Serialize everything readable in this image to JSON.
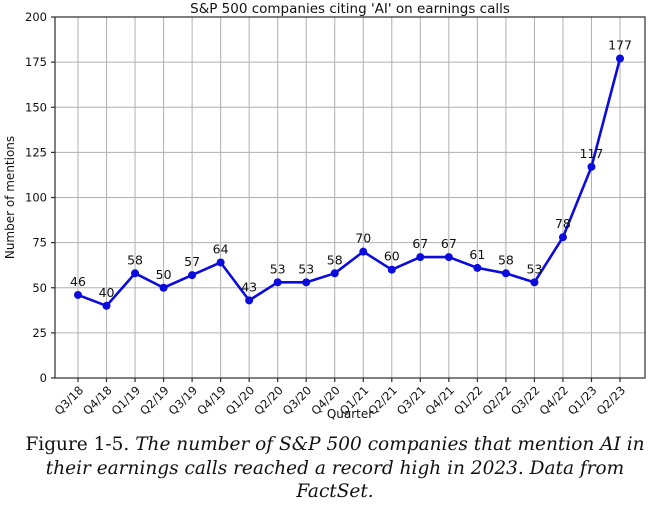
{
  "figure": {
    "caption_label": "Figure 1-5.",
    "caption_text": "The number of S&P 500 companies that mention AI in their earnings calls reached a record high in 2023. Data from FactSet."
  },
  "chart_data": {
    "type": "line",
    "title": "S&P 500 companies citing 'AI' on earnings calls",
    "xlabel": "Quarter",
    "ylabel": "Number of mentions",
    "categories": [
      "Q3/18",
      "Q4/18",
      "Q1/19",
      "Q2/19",
      "Q3/19",
      "Q4/19",
      "Q1/20",
      "Q2/20",
      "Q3/20",
      "Q4/20",
      "Q1/21",
      "Q2/21",
      "Q3/21",
      "Q4/21",
      "Q1/22",
      "Q2/22",
      "Q3/22",
      "Q4/22",
      "Q1/23",
      "Q2/23"
    ],
    "values": [
      46,
      40,
      58,
      50,
      57,
      64,
      43,
      53,
      53,
      58,
      70,
      60,
      67,
      67,
      61,
      58,
      53,
      78,
      117,
      177
    ],
    "ylim": [
      0,
      200
    ],
    "yticks": [
      0,
      25,
      50,
      75,
      100,
      125,
      150,
      175,
      200
    ],
    "grid": true,
    "legend": "none",
    "data_labels": true,
    "line_color": "#0b0bdd",
    "marker_color": "#0b0bdd",
    "grid_color": "#b0b0b0",
    "border_color": "#2b2b2b",
    "label_color": "#1a1a1a"
  }
}
